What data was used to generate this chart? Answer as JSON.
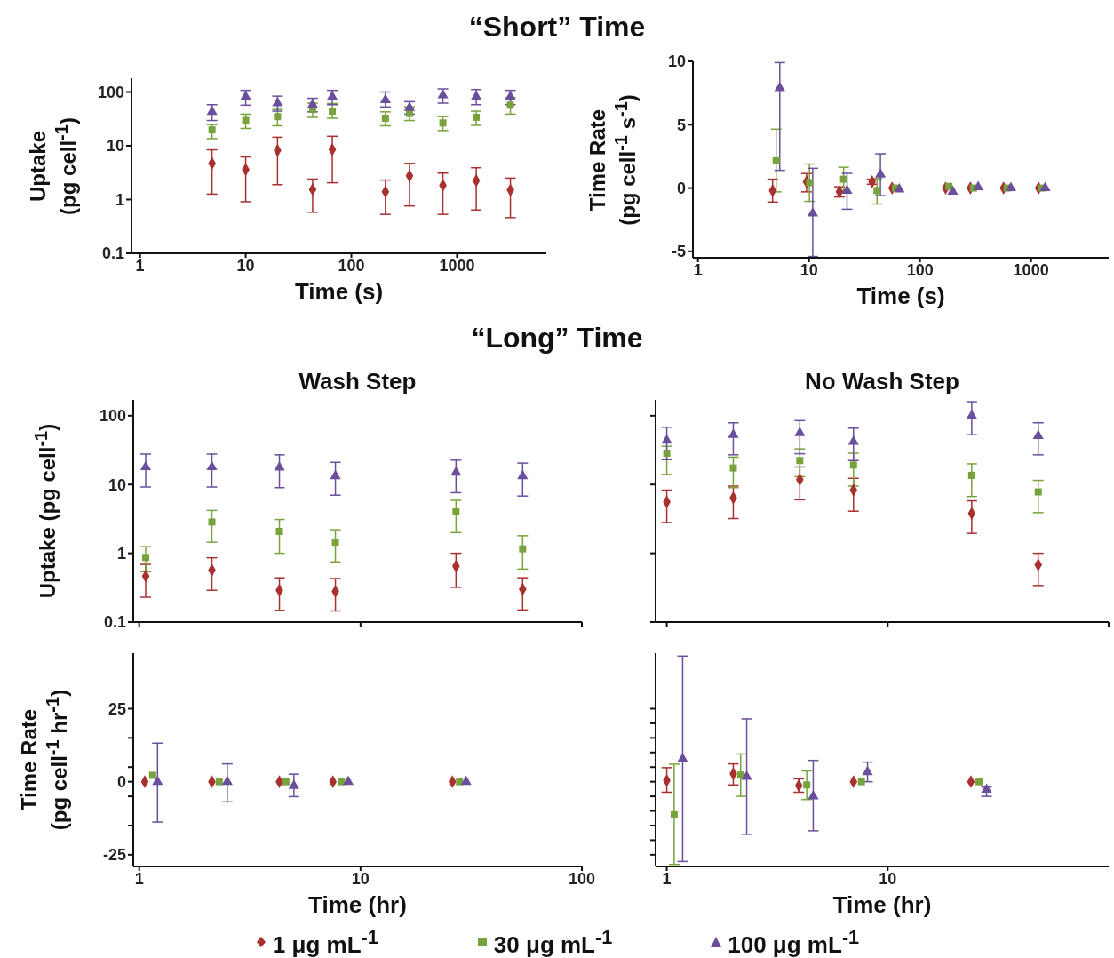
{
  "chart_data": [
    {
      "type": "scatter",
      "annotations": [
        "“Short” Time"
      ],
      "legend": "bottom",
      "xlabel": "Time (s)",
      "ylabel": "Uptake (pg cell$^{-1}$)",
      "log": "xy",
      "xlim": [
        0.83,
        7000
      ],
      "xticks": [
        1,
        10,
        100,
        1000
      ],
      "ylim": [
        0.1,
        180
      ],
      "yticks": [
        0.1,
        1,
        10,
        100
      ],
      "x": [
        4.8,
        10,
        20,
        43,
        66,
        210,
        355,
        735,
        1520,
        3200
      ],
      "series": [
        {
          "name": "1 μg mL$^{-1}$",
          "color": "#a8302e",
          "marker": "diamond",
          "values": [
            4.7,
            3.6,
            8.2,
            1.54,
            8.5,
            1.4,
            2.76,
            1.84,
            2.25,
            1.5
          ],
          "errors": [
            [
              1.26,
              8.4
            ],
            [
              0.91,
              6.2
            ],
            [
              1.89,
              14.4
            ],
            [
              0.58,
              2.4
            ],
            [
              2.05,
              15
            ],
            [
              0.53,
              2.3
            ],
            [
              0.76,
              4.7
            ],
            [
              0.53,
              3.1
            ],
            [
              0.64,
              3.9
            ],
            [
              0.46,
              2.5
            ]
          ]
        },
        {
          "name": "30 μg mL$^{-1}$",
          "color": "#78a33c",
          "marker": "square",
          "values": [
            19.7,
            29.5,
            34.8,
            47.4,
            44,
            32.5,
            39.8,
            26.5,
            33.8,
            56.8
          ],
          "errors": [
            [
              13.6,
              24.7
            ],
            [
              21,
              38.7
            ],
            [
              23.5,
              47.4
            ],
            [
              33.8,
              62
            ],
            [
              32.5,
              61
            ],
            [
              23.5,
              42.7
            ],
            [
              29.5,
              52.7
            ],
            [
              19.2,
              34.8
            ],
            [
              24,
              44
            ],
            [
              38.7,
              79
            ]
          ]
        },
        {
          "name": "100 μg mL$^{-1}$",
          "color": "#6b4f9c",
          "marker": "triangle",
          "values": [
            42.7,
            81.5,
            62,
            58,
            81.5,
            71,
            50.6,
            87.6,
            81.5,
            81.5
          ],
          "errors": [
            [
              29.5,
              58
            ],
            [
              56.8,
              107
            ],
            [
              44,
              83.6
            ],
            [
              42.7,
              76.3
            ],
            [
              58,
              107
            ],
            [
              52.7,
              100
            ],
            [
              38.7,
              66
            ],
            [
              62,
              114
            ],
            [
              58,
              111
            ],
            [
              58,
              107
            ]
          ]
        }
      ]
    },
    {
      "type": "scatter",
      "xlabel": "Time (s)",
      "ylabel": "Time Rate (pg cell$^{-1}$ s$^{-1}$)",
      "log": "x",
      "xlim": [
        0.9,
        5000
      ],
      "xticks": [
        1,
        10,
        100,
        1000
      ],
      "ylim": [
        -5.5,
        10
      ],
      "yticks": [
        -5,
        0,
        5,
        10
      ],
      "series": [
        {
          "color": "#a8302e",
          "marker": "diamond",
          "x": [
            4.7,
            9.5,
            18.8,
            37,
            56,
            170,
            284,
            565,
            1170
          ],
          "values": [
            -0.2,
            0.5,
            -0.3,
            0.5,
            0,
            0,
            0,
            0,
            0
          ],
          "errors": [
            [
              -1.1,
              0.7
            ],
            [
              -0.3,
              1.15
            ],
            [
              -0.7,
              0.1
            ],
            [
              0.3,
              0.7
            ],
            null,
            null,
            null,
            null,
            null
          ]
        },
        {
          "color": "#78a33c",
          "marker": "square",
          "x": [
            5.06,
            10.1,
            20.5,
            41,
            60,
            182,
            303,
            609,
            1250
          ],
          "values": [
            2.15,
            0.43,
            0.7,
            -0.2,
            0,
            0.13,
            0,
            0,
            0
          ],
          "errors": [
            [
              -0.3,
              4.65
            ],
            [
              -1.05,
              1.9
            ],
            [
              -0.2,
              1.64
            ],
            [
              -1.26,
              0.75
            ],
            null,
            null,
            null,
            null,
            null
          ]
        },
        {
          "color": "#6b4f9c",
          "marker": "triangle",
          "x": [
            5.45,
            10.8,
            22,
            44,
            65,
            197,
            334,
            657,
            1340
          ],
          "values": [
            7.9,
            -2.0,
            -0.2,
            1.07,
            -0.1,
            -0.27,
            0.08,
            0,
            0
          ],
          "errors": [
            [
              1.4,
              9.9
            ],
            [
              -5.4,
              1.56
            ],
            [
              -1.67,
              1.16
            ],
            [
              -0.6,
              2.7
            ],
            null,
            null,
            null,
            null,
            null
          ]
        }
      ]
    },
    {
      "type": "scatter",
      "annotations": [
        "“Long” Time"
      ],
      "title": "Wash Step",
      "ylabel": "Uptake (pg cell$^{-1}$)",
      "log": "xy",
      "tick_labels": "y",
      "xlim": [
        0.94,
        100
      ],
      "xticks": [
        {
          "value": 1,
          "label": null
        },
        {
          "value": 10,
          "label": null
        },
        {
          "value": 100,
          "label": null
        }
      ],
      "ylim": [
        0.1,
        170
      ],
      "yticks": [
        0.1,
        1,
        10,
        100
      ],
      "x": [
        1.07,
        2.13,
        4.3,
        7.7,
        27,
        54
      ],
      "series": [
        {
          "color": "#a8302e",
          "marker": "diamond",
          "values": [
            0.465,
            0.57,
            0.29,
            0.28,
            0.65,
            0.3
          ],
          "errors": [
            [
              0.23,
              0.69
            ],
            [
              0.29,
              0.86
            ],
            [
              0.148,
              0.44
            ],
            [
              0.145,
              0.43
            ],
            [
              0.32,
              1.0
            ],
            [
              0.15,
              0.44
            ]
          ]
        },
        {
          "color": "#78a33c",
          "marker": "square",
          "values": [
            0.87,
            2.85,
            2.08,
            1.45,
            4.0,
            1.16
          ],
          "errors": [
            [
              0.54,
              1.25
            ],
            [
              1.45,
              4.2
            ],
            [
              1.0,
              3.1
            ],
            [
              0.75,
              2.2
            ],
            [
              2.0,
              5.9
            ],
            [
              0.59,
              1.8
            ]
          ]
        },
        {
          "color": "#6b4f9c",
          "marker": "triangle",
          "values": [
            18,
            18,
            17.7,
            13.3,
            14.9,
            13.3
          ],
          "errors": [
            [
              9.2,
              27.7
            ],
            [
              9.2,
              27.7
            ],
            [
              9,
              27
            ],
            [
              7,
              21
            ],
            [
              7.6,
              22.6
            ],
            [
              6.8,
              20.5
            ]
          ]
        }
      ]
    },
    {
      "type": "scatter",
      "title": "No Wash Step",
      "log": "xy",
      "tick_labels": false,
      "xlim": [
        0.89,
        100
      ],
      "xticks": [
        {
          "value": 1,
          "label": null
        },
        {
          "value": 10,
          "label": null
        },
        {
          "value": 100,
          "label": null
        }
      ],
      "ylim": [
        0.1,
        170
      ],
      "yticks": [
        {
          "value": 0.1,
          "label": null
        },
        {
          "value": 1,
          "label": null
        },
        {
          "value": 10,
          "label": null
        },
        {
          "value": 100,
          "label": null
        }
      ],
      "x": [
        1,
        2,
        4,
        7,
        24,
        48
      ],
      "series": [
        {
          "color": "#a8302e",
          "marker": "diamond",
          "values": [
            5.6,
            6.4,
            11.8,
            8.3,
            3.8,
            0.68
          ],
          "errors": [
            [
              2.8,
              8.3
            ],
            [
              3.2,
              9.5
            ],
            [
              6,
              18
            ],
            [
              4.1,
              12.3
            ],
            [
              1.95,
              5.8
            ],
            [
              0.34,
              1.0
            ]
          ]
        },
        {
          "color": "#78a33c",
          "marker": "square",
          "values": [
            28.5,
            17.4,
            22.3,
            19.2,
            13.6,
            7.8
          ],
          "errors": [
            [
              14,
              36
            ],
            [
              9,
              25
            ],
            [
              13,
              33
            ],
            [
              9.5,
              28.5
            ],
            [
              6.7,
              20
            ],
            [
              3.9,
              11.5
            ]
          ]
        },
        {
          "color": "#6b4f9c",
          "marker": "triangle",
          "values": [
            43.6,
            53,
            56,
            42,
            100,
            51
          ],
          "errors": [
            [
              23,
              68
            ],
            [
              27,
              79
            ],
            [
              28,
              85
            ],
            [
              22.3,
              66
            ],
            [
              53,
              160
            ],
            [
              27,
              79
            ]
          ]
        }
      ]
    },
    {
      "type": "scatter",
      "xlabel": "Time (hr)",
      "ylabel": "Time Rate (pg cell$^{-1}$ hr$^{-1}$)",
      "log": "x",
      "xlim": [
        0.94,
        100
      ],
      "xticks": [
        1,
        10,
        100
      ],
      "ylim": [
        -29,
        44
      ],
      "yticks": [
        -25,
        {
          "value": -15,
          "label": null
        },
        {
          "value": -5,
          "label": null
        },
        0,
        {
          "value": 5,
          "label": null
        },
        {
          "value": 15,
          "label": null
        },
        25
      ],
      "series": [
        {
          "color": "#a8302e",
          "marker": "diamond",
          "x": [
            1.06,
            2.13,
            4.3,
            7.5,
            26
          ],
          "values": [
            0,
            0,
            0,
            0,
            0
          ]
        },
        {
          "color": "#78a33c",
          "marker": "square",
          "x": [
            1.15,
            2.3,
            4.6,
            8.2,
            28
          ],
          "values": [
            2.2,
            0,
            0,
            0,
            0
          ]
        },
        {
          "color": "#6b4f9c",
          "marker": "triangle",
          "x": [
            1.21,
            2.5,
            5.0,
            8.8,
            30
          ],
          "values": [
            0,
            0,
            -1.4,
            0,
            0
          ],
          "errors": [
            [
              -13.8,
              13.2
            ],
            [
              -6.9,
              6.1
            ],
            [
              -5.1,
              2.6
            ],
            null,
            null
          ]
        }
      ]
    },
    {
      "type": "scatter",
      "xlabel": "Time (hr)",
      "log": "x",
      "tick_labels": "x",
      "xlim": [
        0.89,
        100
      ],
      "xticks": [
        1,
        10
      ],
      "ylim": [
        -29,
        44
      ],
      "yticks": [
        {
          "value": -25,
          "label": null
        },
        {
          "value": -20,
          "label": null
        },
        {
          "value": -15,
          "label": null
        },
        {
          "value": -10,
          "label": null
        },
        {
          "value": -5,
          "label": null
        },
        {
          "value": 0,
          "label": null
        },
        {
          "value": 5,
          "label": null
        },
        {
          "value": 10,
          "label": null
        },
        {
          "value": 15,
          "label": null
        },
        {
          "value": 20,
          "label": null
        },
        {
          "value": 25,
          "label": null
        }
      ],
      "series": [
        {
          "color": "#a8302e",
          "marker": "diamond",
          "x": [
            1.0,
            2.0,
            3.96,
            7.0,
            23.8
          ],
          "values": [
            0.4,
            2.7,
            -1.3,
            0,
            0
          ],
          "errors": [
            [
              -3.6,
              4.8
            ],
            [
              -1.1,
              6.1
            ],
            [
              -3.6,
              1.0
            ],
            null,
            null
          ]
        },
        {
          "color": "#78a33c",
          "marker": "square",
          "x": [
            1.08,
            2.16,
            4.3,
            7.6,
            25.9
          ],
          "values": [
            -11.3,
            2.3,
            -1.1,
            0,
            0
          ],
          "errors": [
            [
              -28.3,
              6.0
            ],
            [
              -5.0,
              9.5
            ],
            [
              -6.1,
              3.7
            ],
            null,
            null
          ]
        },
        {
          "color": "#6b4f9c",
          "marker": "triangle",
          "x": [
            1.18,
            2.3,
            4.6,
            8.1,
            28
          ],
          "values": [
            7.8,
            1.7,
            -5.0,
            3.3,
            -2.7
          ],
          "errors": [
            [
              -27.3,
              43
            ],
            [
              -18,
              21.5
            ],
            [
              -16.8,
              7.3
            ],
            [
              0,
              6.7
            ],
            [
              -5.0,
              -1.8
            ]
          ]
        }
      ]
    }
  ]
}
